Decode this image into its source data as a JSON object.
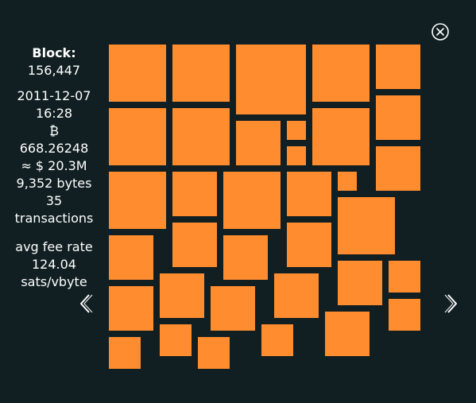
{
  "block": {
    "label": "Block:",
    "height": "156,447",
    "date": "2011-12-07",
    "time": "16:28",
    "currency_icon": "bitcoin-icon",
    "currency_glyph": "₿",
    "amount_btc": "668.26248",
    "amount_usd": "≈ $ 20.3M",
    "size": "9,352 bytes",
    "tx_count": "35",
    "tx_label": "transactions",
    "fee_label": "avg fee rate",
    "fee_value": "124.04",
    "fee_unit": "sats/vbyte"
  },
  "colors": {
    "background": "#111f22",
    "tx_square": "#ff8c2e",
    "text": "#ffffff"
  },
  "controls": {
    "close_icon": "close-circle-icon",
    "prev_icon": "chevron-left-icon",
    "next_icon": "chevron-right-icon"
  }
}
